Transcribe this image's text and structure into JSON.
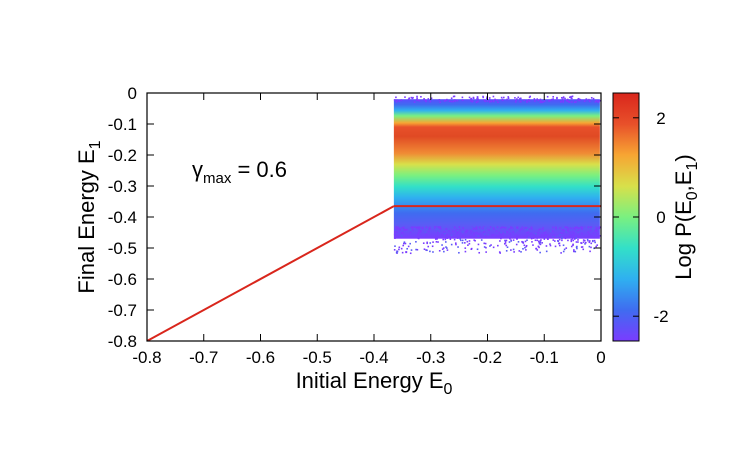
{
  "chart_data": {
    "type": "heatmap",
    "xlabel": "Initial Energy E",
    "xlabel_sub": "0",
    "ylabel": "Final Energy E",
    "ylabel_sub": "1",
    "xlim": [
      -0.8,
      0
    ],
    "ylim": [
      -0.8,
      0
    ],
    "xticks": [
      "-0.8",
      "-0.7",
      "-0.6",
      "-0.5",
      "-0.4",
      "-0.3",
      "-0.2",
      "-0.1",
      "0"
    ],
    "yticks": [
      "0",
      "-0.1",
      "-0.2",
      "-0.3",
      "-0.4",
      "-0.5",
      "-0.6",
      "-0.7",
      "-0.8"
    ],
    "annotation": {
      "symbol": "γ",
      "sub": "max",
      "text": " = 0.6"
    },
    "colorbar": {
      "label_prefix": "Log P(E",
      "label_sub1": "0",
      "label_mid": ",E",
      "label_sub2": "1",
      "label_suffix": ")",
      "range": [
        -2.5,
        2.5
      ],
      "ticks": [
        "2",
        "0",
        "-2"
      ],
      "colors": [
        "#7a3cff",
        "#3f6cf0",
        "#2fb0f0",
        "#33e0c8",
        "#7af080",
        "#d8e04a",
        "#f7a533",
        "#e8502a",
        "#d9261c"
      ]
    },
    "density_region": {
      "x_range": [
        -0.365,
        -0.002
      ],
      "y_range": [
        -0.47,
        -0.02
      ],
      "peak_y": -0.14,
      "scatter_tail_y": -0.51
    },
    "series": [
      {
        "name": "diagonal E1 = E0",
        "color": "#d9261c",
        "x": [
          -0.8,
          -0.365
        ],
        "y": [
          -0.8,
          -0.365
        ]
      },
      {
        "name": "threshold E1 = -0.365",
        "color": "#d9261c",
        "x": [
          -0.365,
          0
        ],
        "y": [
          -0.365,
          -0.365
        ]
      }
    ]
  }
}
